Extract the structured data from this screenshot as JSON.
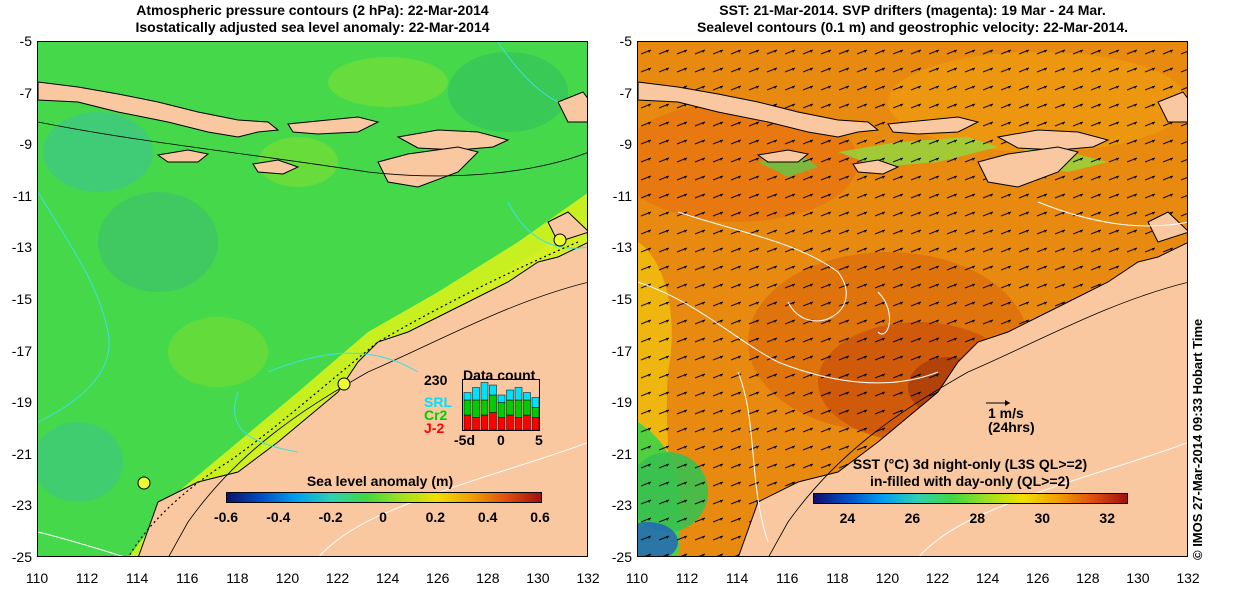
{
  "left_panel": {
    "title_line1": "Atmospheric pressure contours (2 hPa): 22-Mar-2014",
    "title_line2": "Isostatically adjusted sea level anomaly: 22-Mar-2014",
    "colorbar_title": "Sea level anomaly (m)",
    "colorbar_ticks": [
      "-0.6",
      "-0.4",
      "-0.2",
      "0",
      "0.2",
      "0.4",
      "0.6"
    ],
    "data_count": {
      "title": "Data count",
      "max_label": "230",
      "series": [
        "SRL",
        "Cr2",
        "J-2"
      ],
      "series_colors": [
        "#00e0ff",
        "#00cc00",
        "#ff0000"
      ],
      "x_ticks": [
        "-5d",
        "0",
        "5"
      ],
      "bars": [
        {
          "J-2": 0.3,
          "Cr2": 0.3,
          "SRL": 0.15
        },
        {
          "J-2": 0.25,
          "Cr2": 0.35,
          "SRL": 0.25
        },
        {
          "J-2": 0.3,
          "Cr2": 0.3,
          "SRL": 0.35
        },
        {
          "J-2": 0.35,
          "Cr2": 0.35,
          "SRL": 0.2
        },
        {
          "J-2": 0.25,
          "Cr2": 0.3,
          "SRL": 0.15
        },
        {
          "J-2": 0.3,
          "Cr2": 0.3,
          "SRL": 0.2
        },
        {
          "J-2": 0.25,
          "Cr2": 0.35,
          "SRL": 0.25
        },
        {
          "J-2": 0.3,
          "Cr2": 0.3,
          "SRL": 0.15
        },
        {
          "J-2": 0.25,
          "Cr2": 0.2,
          "SRL": 0.2
        }
      ]
    }
  },
  "right_panel": {
    "title_line1": "SST: 21-Mar-2014. SVP drifters (magenta): 19 Mar - 24 Mar.",
    "title_line2": "Sealevel contours (0.1 m) and geostrophic velocity: 22-Mar-2014.",
    "colorbar_title_line1": "SST (°C)  3d night-only (L3S QL>=2)",
    "colorbar_title_line2": "in-filled with day-only (QL>=2)",
    "colorbar_ticks": [
      "24",
      "26",
      "28",
      "30",
      "32"
    ],
    "velocity_scale_label": "1 m/s",
    "velocity_scale_sub": "(24hrs)"
  },
  "axes": {
    "x_ticks": [
      "110",
      "112",
      "114",
      "116",
      "118",
      "120",
      "122",
      "124",
      "126",
      "128",
      "130",
      "132"
    ],
    "y_ticks": [
      "-5",
      "-7",
      "-9",
      "-11",
      "-13",
      "-15",
      "-17",
      "-19",
      "-21",
      "-23",
      "-25"
    ]
  },
  "credit": "© IMOS 27-Mar-2014 09:33 Hobart Time",
  "colors": {
    "land": "#f9c8a0",
    "sla_ocean": "#44d84a",
    "sla_shelf": "#c8f020",
    "sst_ocean": "#e88a10",
    "sst_warm": "#c8500a",
    "coast": "#000000",
    "contour_cyan": "#40e0e0"
  }
}
